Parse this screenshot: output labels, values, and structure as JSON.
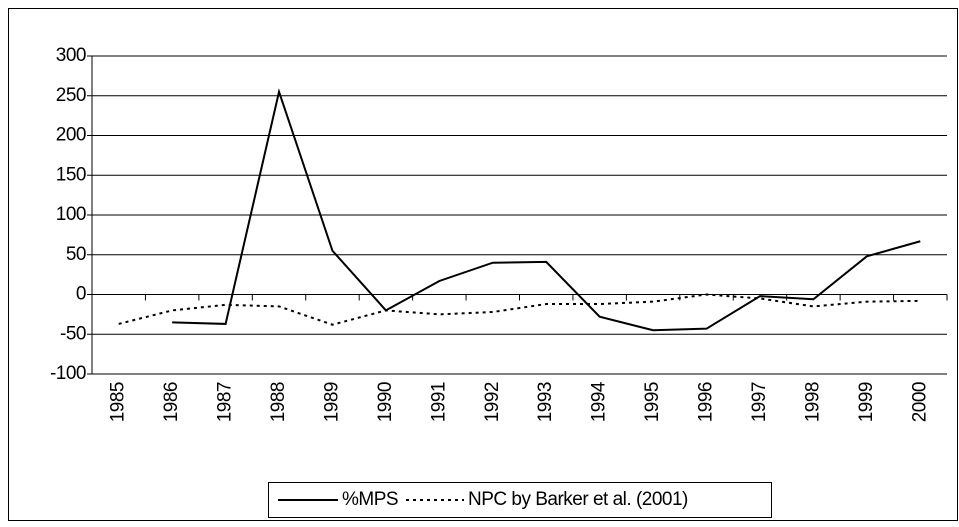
{
  "chart_data": {
    "type": "line",
    "categories": [
      "1985",
      "1986",
      "1987",
      "1988",
      "1989",
      "1990",
      "1991",
      "1992",
      "1993",
      "1994",
      "1995",
      "1996",
      "1997",
      "1998",
      "1999",
      "2000"
    ],
    "series": [
      {
        "name": "%MPS",
        "color": "#000000",
        "dash": "none",
        "values": [
          null,
          -35,
          -37,
          255,
          55,
          -20,
          17,
          40,
          41,
          -28,
          -45,
          -43,
          -2,
          -6,
          48,
          67
        ]
      },
      {
        "name": "NPC by Barker et al. (2001)",
        "color": "#000000",
        "dash": "3,4",
        "values": [
          -37,
          -20,
          -13,
          -15,
          -38,
          -20,
          -25,
          -22,
          -12,
          -12,
          -9,
          0,
          -5,
          -15,
          -9,
          -8
        ]
      }
    ],
    "ylim": [
      -100,
      300
    ],
    "yticks": [
      -100,
      -50,
      0,
      50,
      100,
      150,
      200,
      250,
      300
    ],
    "grid": true
  }
}
